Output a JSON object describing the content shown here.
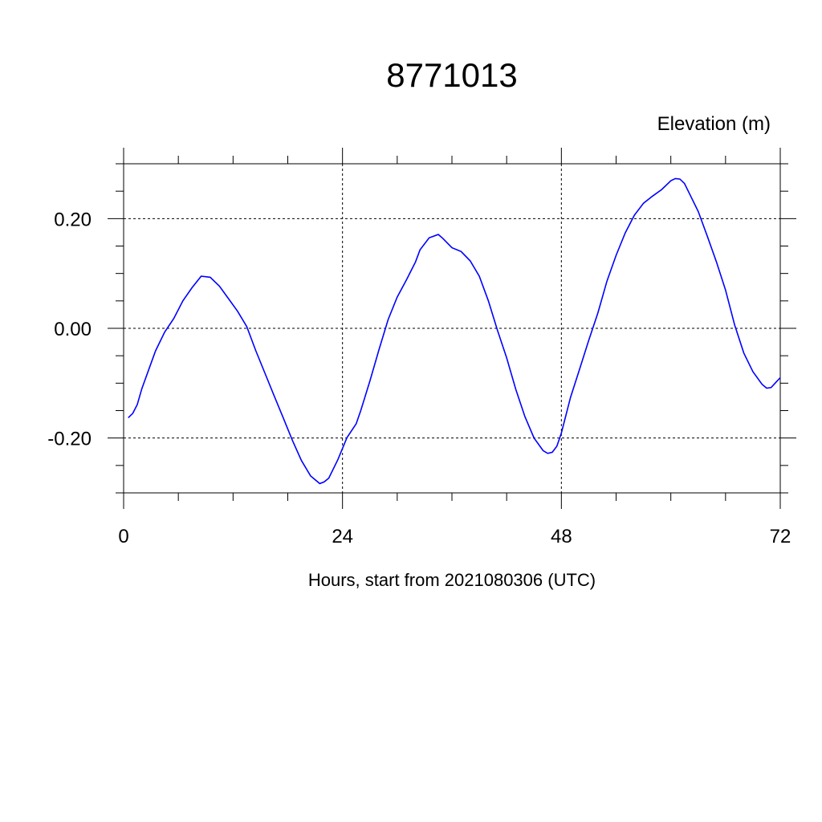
{
  "chart_data": {
    "type": "line",
    "title": "8771013",
    "ylabel": "Elevation (m)",
    "xlabel": "Hours, start from 2021080306 (UTC)",
    "xlim": [
      0,
      72
    ],
    "ylim": [
      -0.3,
      0.3
    ],
    "x_ticks": [
      0,
      24,
      48,
      72
    ],
    "x_tick_labels": [
      "0",
      "24",
      "48",
      "72"
    ],
    "x_minor_step": 6,
    "y_ticks": [
      -0.2,
      0.0,
      0.2
    ],
    "y_tick_labels": [
      "-0.20",
      "0.00",
      "0.20"
    ],
    "y_minor_step": 0.05,
    "grid": "dashed at major ticks",
    "line_color": "#0000ff",
    "series": [
      {
        "x": [
          0.5,
          1,
          1.5,
          2,
          3,
          3.5,
          4.5,
          5.5,
          6.5,
          7.5,
          8.5,
          9.5,
          10.5,
          11.5,
          12.5,
          13.5,
          14.5,
          15.5,
          16.5,
          17.5,
          18.5,
          19.5,
          20.5,
          21.5,
          22,
          22.5,
          23.5,
          24.5,
          25.5,
          26,
          27,
          28,
          29,
          30,
          31,
          32,
          32.5,
          33.5,
          34.5,
          35,
          36,
          37,
          38,
          39,
          40,
          41,
          42,
          43,
          44,
          45,
          46,
          46.5,
          47,
          47.5,
          48,
          49,
          50,
          51,
          52,
          53,
          54,
          55,
          56,
          57,
          58,
          59,
          60,
          60.5,
          61,
          61.5,
          62,
          63,
          64,
          65,
          66,
          67,
          68,
          69,
          70,
          70.5,
          71,
          71.5,
          72
        ],
        "y": [
          -0.163,
          -0.155,
          -0.139,
          -0.11,
          -0.064,
          -0.041,
          -0.007,
          0.018,
          0.05,
          0.074,
          0.095,
          0.093,
          0.077,
          0.054,
          0.031,
          0.003,
          -0.041,
          -0.082,
          -0.123,
          -0.163,
          -0.204,
          -0.241,
          -0.269,
          -0.283,
          -0.28,
          -0.273,
          -0.239,
          -0.199,
          -0.174,
          -0.15,
          -0.096,
          -0.039,
          0.016,
          0.057,
          0.088,
          0.121,
          0.143,
          0.165,
          0.171,
          0.164,
          0.147,
          0.14,
          0.123,
          0.095,
          0.05,
          -0.004,
          -0.054,
          -0.111,
          -0.161,
          -0.2,
          -0.223,
          -0.228,
          -0.226,
          -0.215,
          -0.191,
          -0.126,
          -0.074,
          -0.022,
          0.028,
          0.086,
          0.133,
          0.174,
          0.206,
          0.228,
          0.241,
          0.253,
          0.269,
          0.273,
          0.272,
          0.264,
          0.247,
          0.213,
          0.168,
          0.121,
          0.07,
          0.006,
          -0.045,
          -0.079,
          -0.102,
          -0.109,
          -0.108,
          -0.099,
          -0.09
        ]
      }
    ]
  }
}
